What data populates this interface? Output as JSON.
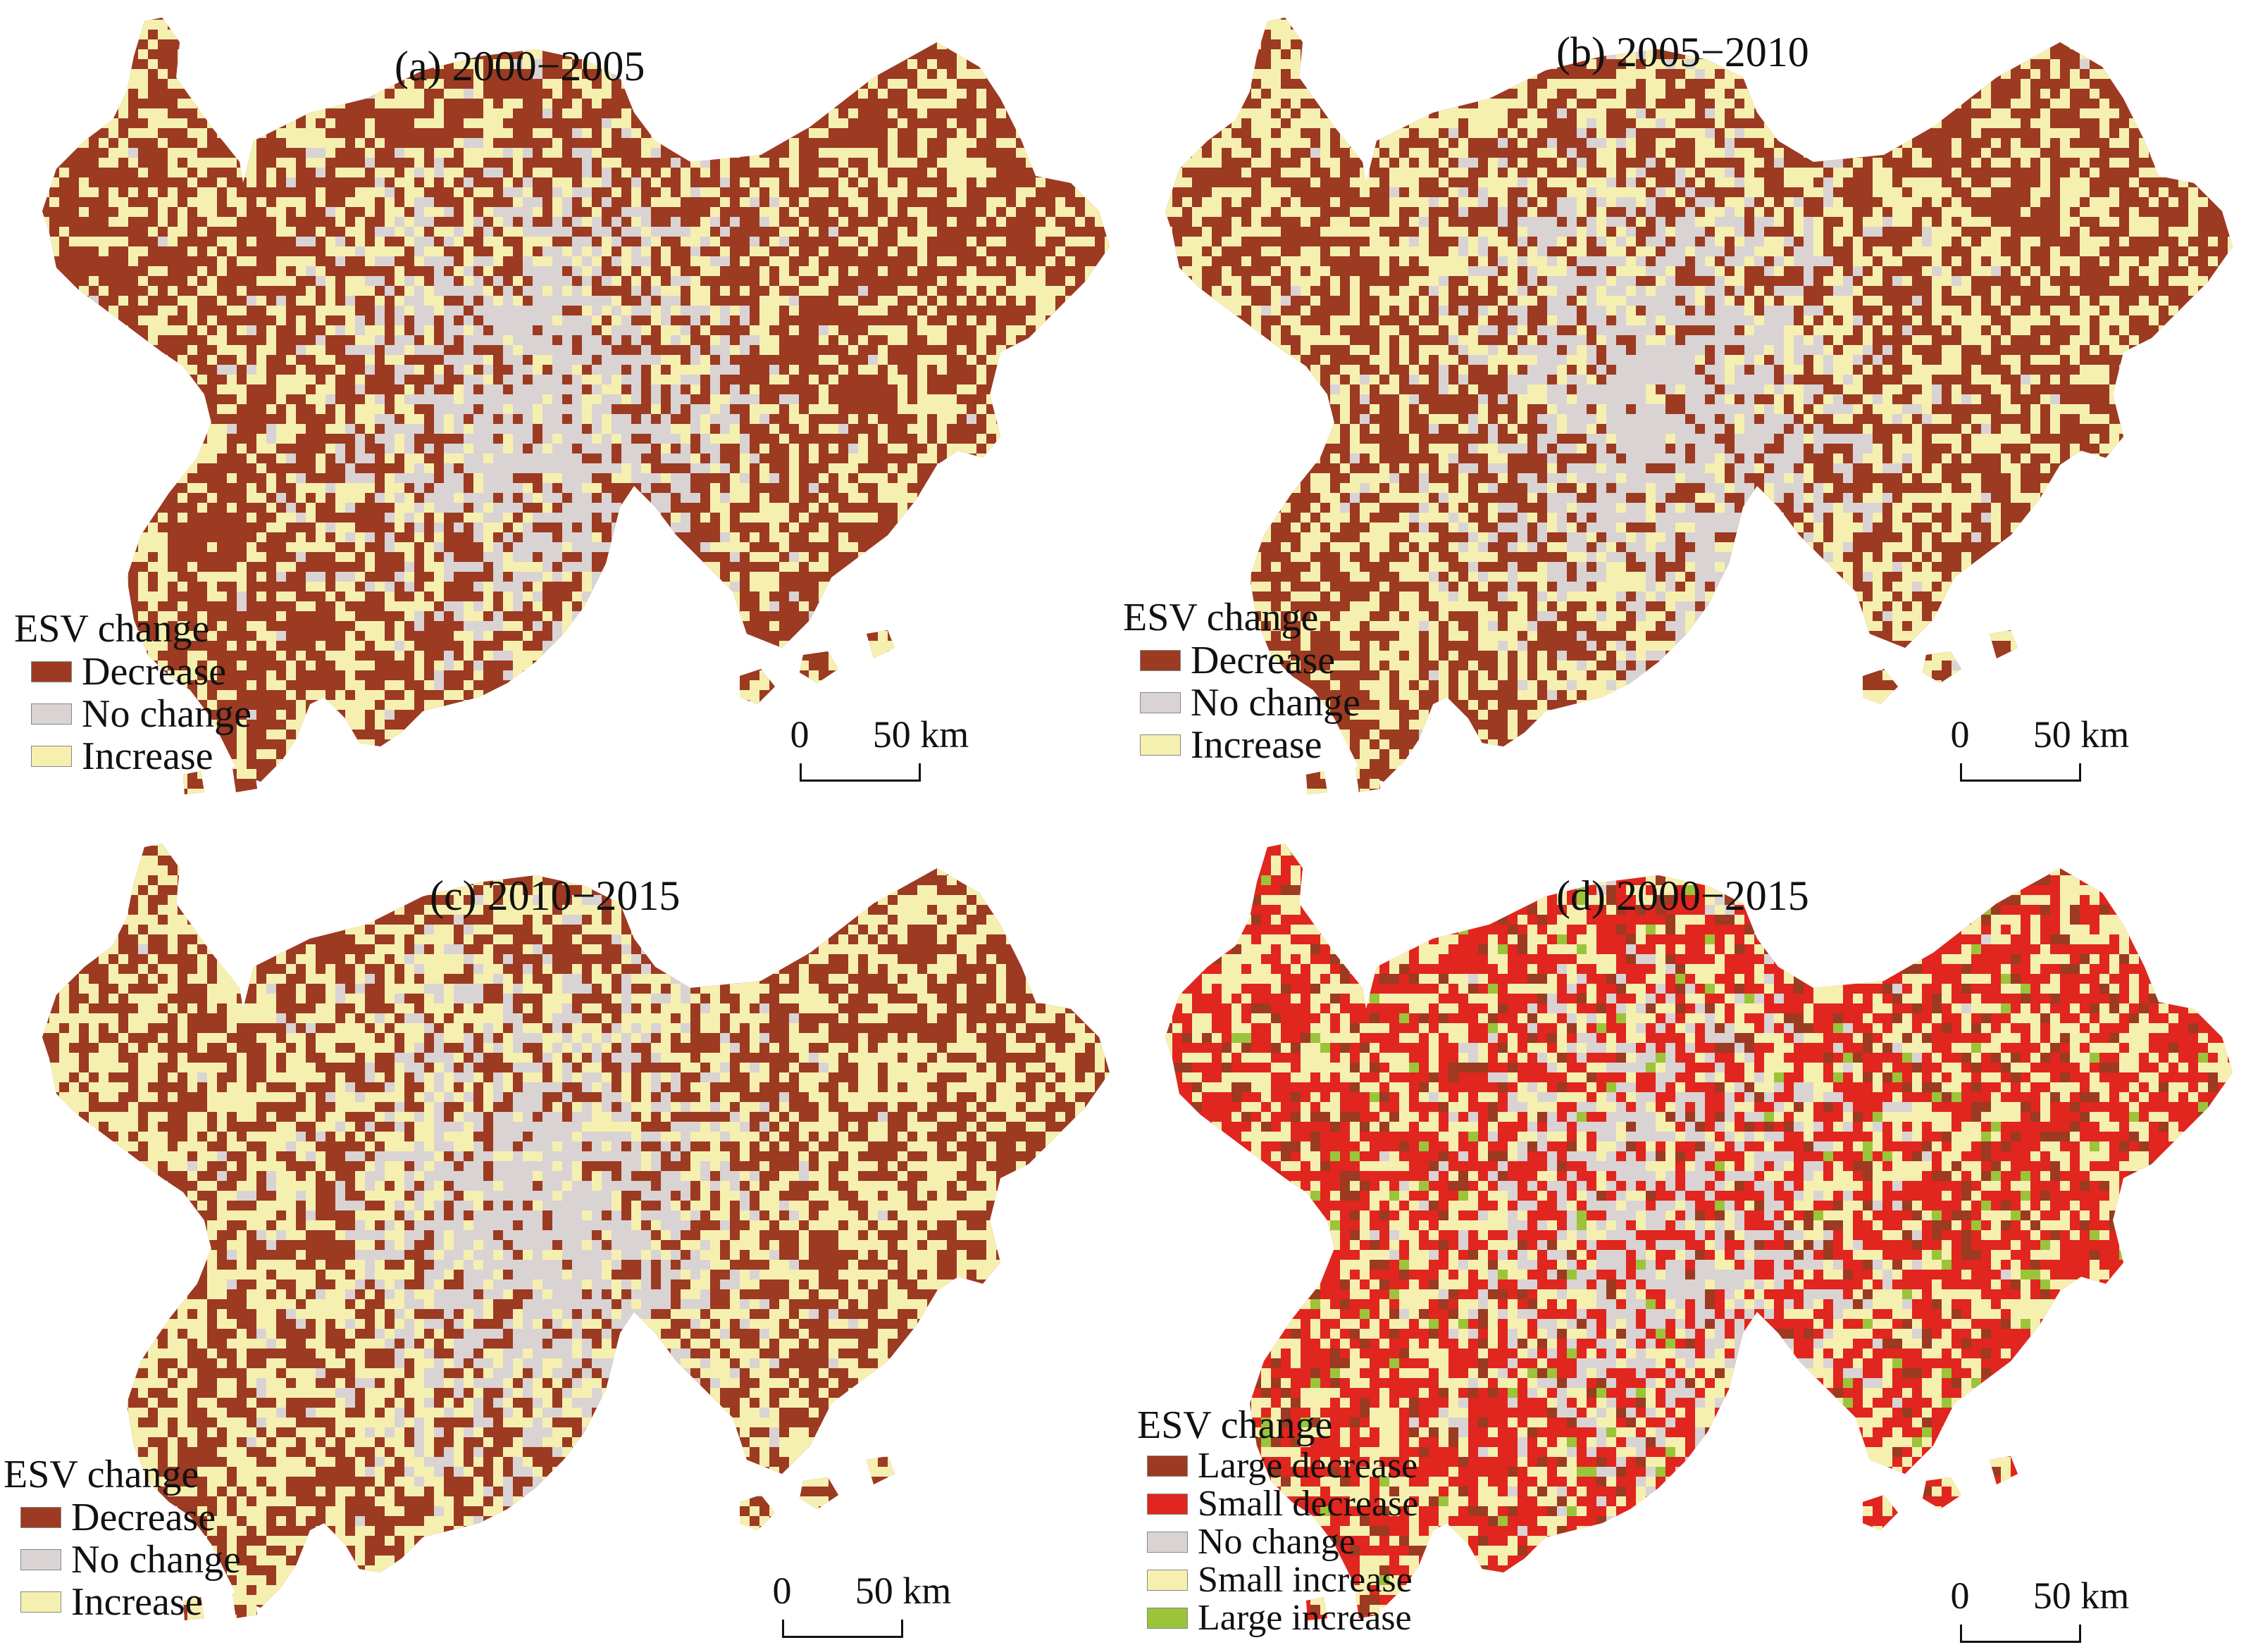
{
  "colors": {
    "decrease": "#9c3a22",
    "no_change": "#d9d3d3",
    "increase": "#f6f0b0",
    "large_decrease": "#9c3a22",
    "small_decrease": "#e0261e",
    "small_increase": "#f6f0b0",
    "large_increase": "#9bc43a"
  },
  "panels": [
    {
      "title": "(a) 2000−2005",
      "legend_title": "ESV change",
      "legend": [
        {
          "label": "Decrease",
          "color": "#9c3a22"
        },
        {
          "label": "No change",
          "color": "#d9d3d3"
        },
        {
          "label": "Increase",
          "color": "#f6f0b0"
        }
      ],
      "scale": {
        "zero": "0",
        "dist": "50 km"
      }
    },
    {
      "title": "(b) 2005−2010",
      "legend_title": "ESV change",
      "legend": [
        {
          "label": "Decrease",
          "color": "#9c3a22"
        },
        {
          "label": "No change",
          "color": "#d9d3d3"
        },
        {
          "label": "Increase",
          "color": "#f6f0b0"
        }
      ],
      "scale": {
        "zero": "0",
        "dist": "50 km"
      }
    },
    {
      "title": "(c) 2010−2015",
      "legend_title": "ESV change",
      "legend": [
        {
          "label": "Decrease",
          "color": "#9c3a22"
        },
        {
          "label": "No change",
          "color": "#d9d3d3"
        },
        {
          "label": "Increase",
          "color": "#f6f0b0"
        }
      ],
      "scale": {
        "zero": "0",
        "dist": "50 km"
      }
    },
    {
      "title": "(d) 2000−2015",
      "legend_title": "ESV change",
      "legend": [
        {
          "label": "Large decrease",
          "color": "#9c3a22"
        },
        {
          "label": "Small decrease",
          "color": "#e0261e"
        },
        {
          "label": "No change",
          "color": "#d9d3d3"
        },
        {
          "label": "Small increase",
          "color": "#f6f0b0"
        },
        {
          "label": "Large increase",
          "color": "#9bc43a"
        }
      ],
      "scale": {
        "zero": "0",
        "dist": "50 km"
      }
    }
  ]
}
